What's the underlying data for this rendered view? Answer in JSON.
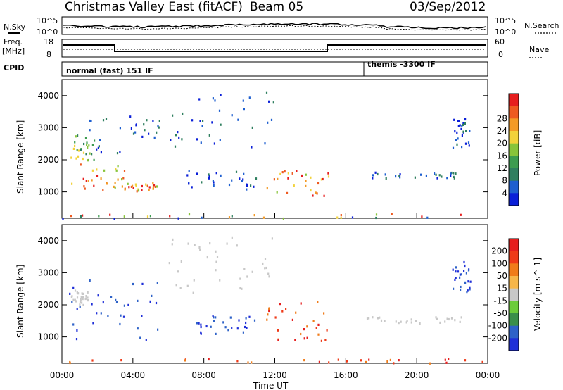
{
  "header": {
    "title": "Christmas Valley East (fitACF)",
    "beam": "Beam 05",
    "date": "03/Sep/2012"
  },
  "top_panels": {
    "nsky_label": "N.Sky",
    "nsearch_label": "N.Search",
    "noise_ticks": [
      "10^5",
      "10^0"
    ],
    "freq_label_1": "Freq.",
    "freq_label_2": "[MHz]",
    "freq_ticks": [
      "18",
      "8"
    ],
    "nave_ticks": [
      "60",
      "0"
    ],
    "nave_label": "Nave",
    "cpid_label": "CPID",
    "cpid_1": "normal (fast) 151 IF",
    "cpid_2": "themis -3300 IF"
  },
  "chart_data": [
    {
      "type": "heatmap",
      "parameter": "Power",
      "ylabel": "Slant Range [km]",
      "xlabel": "Time UT",
      "x_ticks": [
        "00:00",
        "04:00",
        "08:00",
        "12:00",
        "16:00",
        "20:00",
        "00:00"
      ],
      "y_ticks": [
        1000,
        2000,
        3000,
        4000
      ],
      "ylim": [
        180,
        4500
      ],
      "xlim_hours": [
        0,
        24
      ],
      "colorbar": {
        "label": "Power [dB]",
        "ticks": [
          "4",
          "8",
          "12",
          "16",
          "20",
          "24",
          "28"
        ],
        "colors": [
          "#0a1fd8",
          "#1e5fd0",
          "#2f7f5f",
          "#3d9c50",
          "#88c43a",
          "#f2d23a",
          "#f39a25",
          "#ee5a20",
          "#e61e1e"
        ]
      },
      "echo_regions": [
        {
          "t0": 0.5,
          "t1": 3.5,
          "r0": 1000,
          "r1": 2000,
          "level": "high"
        },
        {
          "t0": 3.5,
          "t1": 5.5,
          "r0": 1050,
          "r1": 1300,
          "level": "high"
        },
        {
          "t0": 0.3,
          "t1": 1.8,
          "r0": 2000,
          "r1": 2800,
          "level": "mid"
        },
        {
          "t0": 1.0,
          "t1": 5.5,
          "r0": 2200,
          "r1": 3500,
          "level": "low"
        },
        {
          "t0": 6.0,
          "t1": 12.0,
          "r0": 2400,
          "r1": 4200,
          "level": "low"
        },
        {
          "t0": 7.0,
          "t1": 11.0,
          "r0": 1100,
          "r1": 1700,
          "level": "low"
        },
        {
          "t0": 11.5,
          "t1": 15.0,
          "r0": 900,
          "r1": 1700,
          "level": "high"
        },
        {
          "t0": 17.0,
          "t1": 22.5,
          "r0": 1450,
          "r1": 1650,
          "level": "low"
        },
        {
          "t0": 22.0,
          "t1": 23.0,
          "r0": 2400,
          "r1": 3400,
          "level": "low"
        },
        {
          "t0": 0.0,
          "t1": 24.0,
          "r0": 200,
          "r1": 350,
          "level": "mixed"
        }
      ]
    },
    {
      "type": "heatmap",
      "parameter": "Velocity",
      "ylabel": "Slant Range [km]",
      "xlabel": "Time UT",
      "x_ticks": [
        "00:00",
        "04:00",
        "08:00",
        "12:00",
        "16:00",
        "20:00",
        "00:00"
      ],
      "y_ticks": [
        1000,
        2000,
        3000,
        4000
      ],
      "ylim": [
        180,
        4500
      ],
      "xlim_hours": [
        0,
        24
      ],
      "colorbar": {
        "label": "Velocity [m s^-1]",
        "ticks": [
          "200",
          "100",
          "50",
          "15",
          "-15",
          "-50",
          "-100",
          "-200"
        ],
        "colors": [
          "#1f2fd8",
          "#2e62c8",
          "#3a8f4a",
          "#6ccc3a",
          "#c8c8c8",
          "#f6b64a",
          "#f07c1a",
          "#ee3a18",
          "#e61e1e"
        ]
      },
      "echo_regions": [
        {
          "t0": 0.2,
          "t1": 5.5,
          "r0": 900,
          "r1": 2800,
          "level": "toward"
        },
        {
          "t0": 0.5,
          "t1": 1.5,
          "r0": 2000,
          "r1": 2500,
          "level": "zero"
        },
        {
          "t0": 6.0,
          "t1": 12.0,
          "r0": 2400,
          "r1": 4200,
          "level": "zero"
        },
        {
          "t0": 7.5,
          "t1": 11.0,
          "r0": 1100,
          "r1": 1700,
          "level": "toward"
        },
        {
          "t0": 11.5,
          "t1": 15.0,
          "r0": 900,
          "r1": 2200,
          "level": "away"
        },
        {
          "t0": 17.0,
          "t1": 22.5,
          "r0": 1450,
          "r1": 1650,
          "level": "zero"
        },
        {
          "t0": 22.0,
          "t1": 23.0,
          "r0": 2400,
          "r1": 3400,
          "level": "toward"
        },
        {
          "t0": 0.0,
          "t1": 24.0,
          "r0": 200,
          "r1": 350,
          "level": "away"
        }
      ]
    }
  ]
}
